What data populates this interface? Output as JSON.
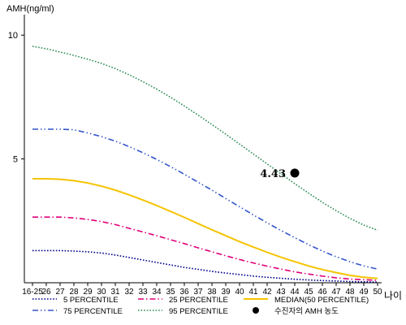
{
  "chart_data": {
    "type": "line",
    "ylabel": "AMH(ng/ml)",
    "xlabel": "나이",
    "ylim": [
      0,
      10.5
    ],
    "yticks": [
      {
        "value": 5,
        "label": "5"
      },
      {
        "value": 10,
        "label": "10"
      }
    ],
    "categories": [
      "16-25",
      "26",
      "27",
      "28",
      "29",
      "30",
      "31",
      "32",
      "33",
      "34",
      "35",
      "36",
      "37",
      "38",
      "39",
      "40",
      "41",
      "42",
      "43",
      "44",
      "45",
      "46",
      "47",
      "48",
      "49",
      "50"
    ],
    "series": [
      {
        "name": "5 PERCENTILE",
        "color": "#00008b",
        "dash": "dotted",
        "values": [
          1.3,
          1.3,
          1.3,
          1.28,
          1.25,
          1.2,
          1.12,
          1.02,
          0.92,
          0.82,
          0.72,
          0.62,
          0.54,
          0.46,
          0.39,
          0.33,
          0.27,
          0.22,
          0.18,
          0.14,
          0.11,
          0.09,
          0.07,
          0.05,
          0.04,
          0.03
        ]
      },
      {
        "name": "25 PERCENTILE",
        "color": "#e0007a",
        "dash": "dashdot",
        "values": [
          2.65,
          2.65,
          2.65,
          2.62,
          2.56,
          2.47,
          2.35,
          2.2,
          2.05,
          1.9,
          1.74,
          1.58,
          1.41,
          1.25,
          1.09,
          0.94,
          0.8,
          0.67,
          0.55,
          0.44,
          0.35,
          0.27,
          0.2,
          0.15,
          0.12,
          0.1
        ]
      },
      {
        "name": "MEDIAN(50 PERCENTILE)",
        "color": "#f5c400",
        "dash": "solid",
        "values": [
          4.2,
          4.2,
          4.18,
          4.12,
          4.03,
          3.9,
          3.74,
          3.55,
          3.34,
          3.12,
          2.88,
          2.64,
          2.39,
          2.14,
          1.9,
          1.66,
          1.44,
          1.23,
          1.03,
          0.85,
          0.68,
          0.53,
          0.41,
          0.3,
          0.22,
          0.17
        ]
      },
      {
        "name": "75 PERCENTILE",
        "color": "#3355cc",
        "dash": "dashdotdot",
        "values": [
          6.2,
          6.2,
          6.2,
          6.18,
          6.05,
          5.9,
          5.72,
          5.5,
          5.25,
          4.98,
          4.69,
          4.38,
          4.06,
          3.74,
          3.4,
          3.07,
          2.74,
          2.42,
          2.11,
          1.82,
          1.54,
          1.28,
          1.05,
          0.85,
          0.68,
          0.55
        ]
      },
      {
        "name": "95 PERCENTILE",
        "color": "#2e8b57",
        "dash": "dotted",
        "values": [
          9.55,
          9.45,
          9.32,
          9.18,
          9.03,
          8.86,
          8.65,
          8.4,
          8.12,
          7.82,
          7.49,
          7.14,
          6.77,
          6.39,
          6.0,
          5.6,
          5.2,
          4.8,
          4.4,
          4.0,
          3.62,
          3.25,
          2.91,
          2.6,
          2.33,
          2.12
        ]
      }
    ],
    "marker": {
      "label": "수진자의 AMH 농도",
      "value_label": "4.43",
      "x": "44",
      "y": 4.43,
      "color": "#000000"
    },
    "legend_position": "bottom"
  }
}
